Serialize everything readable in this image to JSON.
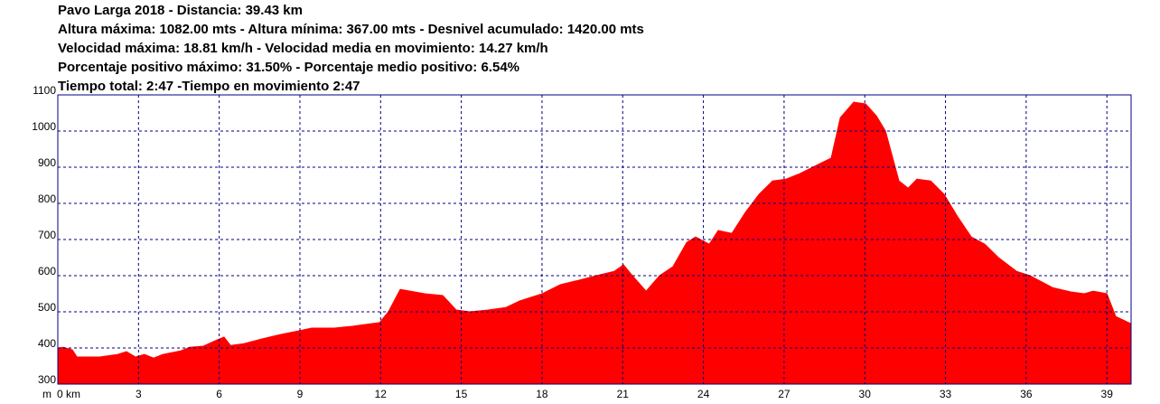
{
  "chart_data": {
    "type": "area",
    "title": "Pavo Larga 2018 - Distancia: 39.43 km",
    "subtitles": [
      "Altura máxima: 1082.00 mts - Altura mínima: 367.00 mts - Desnivel acumulado: 1420.00 mts",
      "Velocidad máxima: 18.81 km/h -  Velocidad media en movimiento: 14.27 km/h",
      "Porcentaje positivo máximo: 31.50% - Porcentaje medio positivo: 6.54%",
      "Tiempo total: 2:47 -Tiempo en movimiento 2:47"
    ],
    "y_label": "m",
    "x": [
      0,
      0.2,
      0.54,
      0.71,
      1.55,
      2.22,
      2.55,
      2.89,
      3.22,
      3.56,
      3.9,
      4.23,
      4.57,
      4.9,
      5.41,
      5.91,
      6.18,
      6.42,
      6.92,
      7.59,
      8.26,
      8.93,
      9.44,
      10.28,
      10.95,
      11.62,
      11.96,
      12.29,
      12.73,
      13.64,
      14.31,
      14.81,
      15.32,
      15.99,
      16.66,
      17.17,
      18.01,
      18.68,
      19.35,
      20.02,
      20.69,
      21.03,
      21.36,
      21.87,
      22.37,
      22.87,
      23.38,
      23.71,
      24.22,
      24.55,
      25.06,
      25.56,
      26.07,
      26.57,
      27.07,
      27.58,
      28.25,
      28.75,
      29.09,
      29.59,
      30.03,
      30.43,
      30.77,
      31.27,
      31.61,
      31.94,
      32.45,
      32.95,
      33.46,
      33.96,
      34.46,
      34.97,
      35.64,
      36.14,
      36.98,
      37.66,
      38.16,
      38.49,
      39.0,
      39.33,
      39.9
    ],
    "values": [
      400,
      402,
      395,
      375,
      375,
      382,
      390,
      375,
      382,
      372,
      382,
      387,
      392,
      402,
      405,
      422,
      430,
      407,
      412,
      425,
      437,
      447,
      455,
      455,
      460,
      467,
      470,
      500,
      562,
      550,
      545,
      505,
      500,
      505,
      512,
      530,
      550,
      575,
      587,
      600,
      612,
      630,
      600,
      557,
      600,
      625,
      692,
      707,
      687,
      725,
      717,
      775,
      825,
      862,
      867,
      882,
      907,
      925,
      1037,
      1080,
      1075,
      1042,
      1000,
      862,
      842,
      867,
      862,
      825,
      762,
      707,
      687,
      650,
      612,
      600,
      567,
      555,
      550,
      557,
      550,
      487,
      467
    ],
    "color": "#ff0000",
    "grid": true,
    "grid_color": "#000080",
    "xlim": [
      0,
      39.9
    ],
    "ylim": [
      300,
      1100
    ],
    "xticks": [
      {
        "value": 0,
        "label": "0 km"
      },
      3,
      6,
      9,
      12,
      15,
      18,
      21,
      24,
      27,
      30,
      33,
      36,
      39
    ],
    "yticks": [
      300,
      400,
      500,
      600,
      700,
      800,
      900,
      1000,
      1100
    ]
  }
}
